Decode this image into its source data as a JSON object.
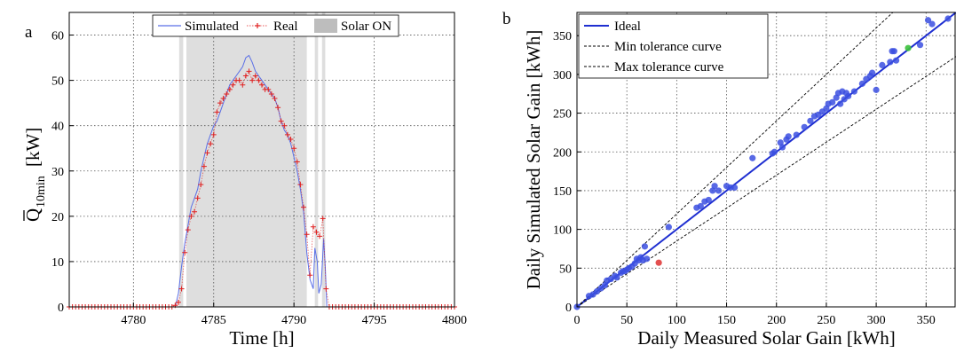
{
  "chart_data": [
    {
      "type": "line",
      "panel_label": "a",
      "xlabel": "Time [h]",
      "ylabel_main": "Q",
      "ylabel_sub": "10min",
      "ylabel_unit": "[kW]",
      "xlim": [
        4776,
        4800
      ],
      "ylim": [
        0,
        65
      ],
      "xticks": [
        4780,
        4785,
        4790,
        4795,
        4800
      ],
      "yticks": [
        0,
        10,
        20,
        30,
        40,
        50,
        60
      ],
      "grid": true,
      "legend_position": "top-center",
      "colors": {
        "simulated": "#5a6fe6",
        "real": "#e02020",
        "solar_on": "#bdbdbd"
      },
      "solar_on_intervals": [
        [
          4782.85,
          4783.1
        ],
        [
          4783.3,
          4790.8
        ],
        [
          4791.3,
          4791.5
        ],
        [
          4791.75,
          4791.95
        ]
      ],
      "series": [
        {
          "name": "Simulated",
          "x": [
            4776,
            4782.6,
            4782.8,
            4783.0,
            4783.2,
            4783.4,
            4783.6,
            4783.8,
            4784.0,
            4784.2,
            4784.4,
            4784.6,
            4784.8,
            4785.0,
            4785.2,
            4785.4,
            4785.6,
            4785.8,
            4786.0,
            4786.2,
            4786.4,
            4786.6,
            4786.8,
            4787.0,
            4787.2,
            4787.4,
            4787.6,
            4787.8,
            4788.0,
            4788.2,
            4788.4,
            4788.6,
            4788.8,
            4789.0,
            4789.2,
            4789.4,
            4789.6,
            4789.8,
            4790.0,
            4790.2,
            4790.4,
            4790.6,
            4790.8,
            4791.0,
            4791.2,
            4791.3,
            4791.45,
            4791.55,
            4791.7,
            4791.85,
            4791.95,
            4792.05,
            4800
          ],
          "y": [
            0,
            0,
            3,
            9,
            14,
            18,
            22,
            24,
            26,
            30,
            33,
            36,
            38,
            40,
            41,
            43,
            45,
            47,
            49,
            50,
            51,
            52,
            53,
            55,
            55.5,
            54,
            52,
            51,
            50,
            49,
            48,
            47,
            46,
            44,
            41,
            39,
            38,
            36,
            33,
            30,
            26,
            21,
            12,
            6,
            4,
            13,
            10,
            3,
            5,
            15,
            9,
            0,
            0
          ]
        },
        {
          "name": "Real",
          "x": [
            4776,
            4782.5,
            4782.8,
            4783.0,
            4783.2,
            4783.4,
            4783.6,
            4783.8,
            4784.0,
            4784.2,
            4784.4,
            4784.6,
            4784.8,
            4785.0,
            4785.2,
            4785.4,
            4785.6,
            4785.8,
            4786.0,
            4786.2,
            4786.4,
            4786.6,
            4786.8,
            4787.0,
            4787.2,
            4787.4,
            4787.6,
            4787.8,
            4788.0,
            4788.2,
            4788.4,
            4788.6,
            4788.8,
            4789.0,
            4789.2,
            4789.4,
            4789.6,
            4789.8,
            4790.0,
            4790.2,
            4790.4,
            4790.6,
            4790.8,
            4791.0,
            4791.3,
            4791.5,
            4791.75,
            4791.95,
            4792.1,
            4800
          ],
          "y": [
            0,
            0,
            1,
            4,
            12,
            17,
            20,
            21,
            24,
            27,
            31,
            34,
            36,
            38,
            43,
            45,
            46,
            47,
            48,
            49,
            50,
            50,
            49,
            51,
            52,
            50,
            51,
            50,
            49,
            48,
            48,
            47,
            46,
            44,
            41,
            40,
            38,
            37,
            35,
            32,
            27,
            22,
            16,
            7,
            23,
            10,
            24,
            6,
            0,
            0
          ]
        }
      ],
      "legend": [
        "Simulated",
        "Real",
        "Solar ON"
      ]
    },
    {
      "type": "scatter",
      "panel_label": "b",
      "xlabel": "Daily Measured Solar Gain [kWh]",
      "ylabel": "Daily Simulated Solar Gain [kWh]",
      "xlim": [
        0,
        380
      ],
      "ylim": [
        0,
        380
      ],
      "xticks": [
        0,
        50,
        100,
        150,
        200,
        250,
        300,
        350
      ],
      "yticks": [
        0,
        50,
        100,
        150,
        200,
        250,
        300,
        350
      ],
      "grid": true,
      "legend_position": "top-left",
      "colors": {
        "ideal": "#1f2fd1",
        "points": "#3b4fe0",
        "outlier_low": "#e03c3c",
        "outlier_high": "#3cc23c",
        "tolerance": "#000000"
      },
      "lines": [
        {
          "name": "Ideal",
          "slope": 1.0
        },
        {
          "name": "Min tolerance curve",
          "slope": 1.2
        },
        {
          "name": "Max tolerance curve",
          "slope": 0.85
        }
      ],
      "points": [
        [
          0,
          0
        ],
        [
          12,
          14
        ],
        [
          16,
          16
        ],
        [
          20,
          20
        ],
        [
          24,
          24
        ],
        [
          28,
          28
        ],
        [
          30,
          34
        ],
        [
          34,
          36
        ],
        [
          38,
          40
        ],
        [
          40,
          38
        ],
        [
          44,
          44
        ],
        [
          46,
          46
        ],
        [
          48,
          46
        ],
        [
          50,
          48
        ],
        [
          52,
          50
        ],
        [
          55,
          52
        ],
        [
          58,
          56
        ],
        [
          60,
          62
        ],
        [
          62,
          60
        ],
        [
          64,
          64
        ],
        [
          66,
          60
        ],
        [
          68,
          78
        ],
        [
          70,
          62
        ],
        [
          92,
          103
        ],
        [
          120,
          128
        ],
        [
          124,
          130
        ],
        [
          128,
          136
        ],
        [
          132,
          138
        ],
        [
          136,
          150
        ],
        [
          138,
          156
        ],
        [
          142,
          150
        ],
        [
          150,
          156
        ],
        [
          154,
          154
        ],
        [
          158,
          154
        ],
        [
          176,
          192
        ],
        [
          196,
          198
        ],
        [
          198,
          200
        ],
        [
          204,
          212
        ],
        [
          206,
          206
        ],
        [
          210,
          216
        ],
        [
          212,
          220
        ],
        [
          220,
          222
        ],
        [
          228,
          232
        ],
        [
          234,
          240
        ],
        [
          238,
          246
        ],
        [
          242,
          248
        ],
        [
          246,
          252
        ],
        [
          250,
          256
        ],
        [
          252,
          262
        ],
        [
          256,
          264
        ],
        [
          260,
          270
        ],
        [
          262,
          276
        ],
        [
          264,
          262
        ],
        [
          266,
          278
        ],
        [
          268,
          268
        ],
        [
          270,
          276
        ],
        [
          272,
          272
        ],
        [
          278,
          278
        ],
        [
          286,
          288
        ],
        [
          290,
          294
        ],
        [
          294,
          298
        ],
        [
          296,
          302
        ],
        [
          300,
          280
        ],
        [
          306,
          312
        ],
        [
          314,
          316
        ],
        [
          316,
          330
        ],
        [
          318,
          330
        ],
        [
          320,
          318
        ],
        [
          344,
          338
        ],
        [
          352,
          370
        ],
        [
          356,
          365
        ],
        [
          372,
          372
        ]
      ],
      "outliers": [
        {
          "x": 82,
          "y": 57,
          "color_key": "outlier_low"
        },
        {
          "x": 332,
          "y": 334,
          "color_key": "outlier_high"
        }
      ],
      "legend": [
        "Ideal",
        "Min tolerance curve",
        "Max tolerance curve"
      ]
    }
  ]
}
